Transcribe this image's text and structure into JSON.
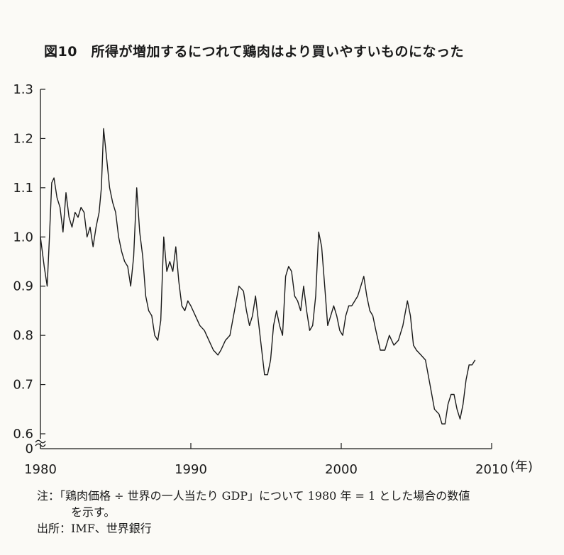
{
  "chart_data": {
    "type": "line",
    "title": "図10　所得が増加するにつれて鶏肉はより買いやすいものになった",
    "xlabel": "",
    "ylabel": "",
    "x_unit_label": "(年)",
    "xlim": [
      1980,
      2010
    ],
    "ylim": [
      0.6,
      1.3
    ],
    "axis_break_label": "0",
    "x_ticks": [
      1980,
      1990,
      2000,
      2010
    ],
    "x_tick_labels": [
      "1980",
      "1990",
      "2000",
      "2010"
    ],
    "y_ticks": [
      0.6,
      0.7,
      0.8,
      0.9,
      1.0,
      1.1,
      1.2,
      1.3
    ],
    "y_tick_labels": [
      "0.6",
      "0.7",
      "0.8",
      "0.9",
      "1.0",
      "1.1",
      "1.2",
      "1.3"
    ],
    "grid": false,
    "line_color": "#1a1a1a",
    "series": [
      {
        "x": [
          1980.0,
          1980.25,
          1980.45,
          1980.6,
          1980.75,
          1980.9,
          1981.1,
          1981.3,
          1981.5,
          1981.7,
          1981.9,
          1982.1,
          1982.3,
          1982.5,
          1982.7,
          1982.9,
          1983.1,
          1983.3,
          1983.5,
          1983.7,
          1983.9,
          1984.05,
          1984.2,
          1984.4,
          1984.6,
          1984.8,
          1985.0,
          1985.2,
          1985.4,
          1985.6,
          1985.8,
          1986.0,
          1986.2,
          1986.4,
          1986.6,
          1986.8,
          1987.0,
          1987.2,
          1987.4,
          1987.6,
          1987.8,
          1988.0,
          1988.2,
          1988.4,
          1988.6,
          1988.8,
          1989.0,
          1989.2,
          1989.4,
          1989.6,
          1989.8,
          1990.0,
          1990.3,
          1990.6,
          1990.9,
          1991.2,
          1991.5,
          1991.8,
          1992.0,
          1992.3,
          1992.6,
          1992.9,
          1993.2,
          1993.5,
          1993.7,
          1993.9,
          1994.1,
          1994.3,
          1994.6,
          1994.9,
          1995.1,
          1995.3,
          1995.5,
          1995.7,
          1995.9,
          1996.1,
          1996.3,
          1996.5,
          1996.7,
          1996.9,
          1997.1,
          1997.3,
          1997.5,
          1997.7,
          1997.9,
          1998.1,
          1998.3,
          1998.5,
          1998.7,
          1998.9,
          1999.1,
          1999.3,
          1999.5,
          1999.7,
          1999.9,
          2000.1,
          2000.3,
          2000.5,
          2000.7,
          2000.9,
          2001.1,
          2001.3,
          2001.5,
          2001.7,
          2001.9,
          2002.1,
          2002.3,
          2002.6,
          2002.9,
          2003.2,
          2003.5,
          2003.8,
          2004.1,
          2004.4,
          2004.6,
          2004.8,
          2005.0,
          2005.3,
          2005.6,
          2005.9,
          2006.2,
          2006.5,
          2006.7,
          2006.9,
          2007.1,
          2007.3,
          2007.5,
          2007.7,
          2007.9,
          2008.1,
          2008.3,
          2008.5,
          2008.7,
          2008.9
        ],
        "values": [
          1.0,
          0.94,
          0.9,
          1.0,
          1.11,
          1.12,
          1.08,
          1.06,
          1.01,
          1.09,
          1.04,
          1.02,
          1.05,
          1.04,
          1.06,
          1.05,
          1.0,
          1.02,
          0.98,
          1.02,
          1.05,
          1.1,
          1.22,
          1.16,
          1.1,
          1.07,
          1.05,
          1.0,
          0.97,
          0.95,
          0.94,
          0.9,
          0.96,
          1.1,
          1.01,
          0.96,
          0.88,
          0.85,
          0.84,
          0.8,
          0.79,
          0.83,
          1.0,
          0.93,
          0.95,
          0.93,
          0.98,
          0.91,
          0.86,
          0.85,
          0.87,
          0.86,
          0.84,
          0.82,
          0.81,
          0.79,
          0.77,
          0.76,
          0.77,
          0.79,
          0.8,
          0.85,
          0.9,
          0.89,
          0.85,
          0.82,
          0.84,
          0.88,
          0.8,
          0.72,
          0.72,
          0.75,
          0.82,
          0.85,
          0.82,
          0.8,
          0.92,
          0.94,
          0.93,
          0.88,
          0.87,
          0.85,
          0.9,
          0.85,
          0.81,
          0.82,
          0.88,
          1.01,
          0.98,
          0.9,
          0.82,
          0.84,
          0.86,
          0.84,
          0.81,
          0.8,
          0.84,
          0.86,
          0.86,
          0.87,
          0.88,
          0.9,
          0.92,
          0.88,
          0.85,
          0.84,
          0.81,
          0.77,
          0.77,
          0.8,
          0.78,
          0.79,
          0.82,
          0.87,
          0.84,
          0.78,
          0.77,
          0.76,
          0.75,
          0.7,
          0.65,
          0.64,
          0.62,
          0.62,
          0.66,
          0.68,
          0.68,
          0.65,
          0.63,
          0.66,
          0.71,
          0.74,
          0.74,
          0.75
        ]
      }
    ]
  },
  "notes": {
    "note_line1": "注：「鶏肉価格 ÷ 世界の一人当たり GDP」について 1980 年 = 1 とした場合の数値",
    "note_line2": "を示す。",
    "source": "出所：IMF、世界銀行"
  }
}
